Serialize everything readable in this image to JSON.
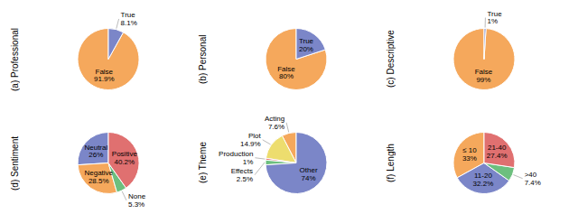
{
  "chart_data": [
    {
      "type": "pie",
      "title": "(a) Professional",
      "categories": [
        "False",
        "True"
      ],
      "values": [
        91.9,
        8.1
      ],
      "value_labels": [
        "91.9%",
        "8.1%"
      ],
      "colors": [
        "#F5A85C",
        "#7B86C8"
      ],
      "data_labels": true
    },
    {
      "type": "pie",
      "title": "(b) Personal",
      "categories": [
        "False",
        "True"
      ],
      "values": [
        80.0,
        20.0
      ],
      "value_labels": [
        "80%",
        "20%"
      ],
      "colors": [
        "#F5A85C",
        "#7B86C8"
      ],
      "data_labels": true
    },
    {
      "type": "pie",
      "title": "(c) Descriptive",
      "categories": [
        "False",
        "True"
      ],
      "values": [
        99.0,
        1.0
      ],
      "value_labels": [
        "99%",
        "1%"
      ],
      "colors": [
        "#F5A85C",
        "#7B86C8"
      ],
      "data_labels": true
    },
    {
      "type": "pie",
      "title": "(d) Sentiment",
      "categories": [
        "Neutral",
        "Negative",
        "None",
        "Positive"
      ],
      "values": [
        26.0,
        28.5,
        5.3,
        40.2
      ],
      "value_labels": [
        "26%",
        "28.5%",
        "5.3%",
        "40.2%"
      ],
      "colors": [
        "#7B86C8",
        "#F5A85C",
        "#6DBF7E",
        "#E07070"
      ],
      "data_labels": true
    },
    {
      "type": "pie",
      "title": "(e) Theme",
      "categories": [
        "Acting",
        "Plot",
        "Production",
        "Effects",
        "Other"
      ],
      "values": [
        7.6,
        14.9,
        1.0,
        2.5,
        74.0
      ],
      "value_labels": [
        "7.6%",
        "14.9%",
        "1%",
        "2.5%",
        "74%"
      ],
      "colors": [
        "#F5A85C",
        "#EDDD6E",
        "#E07070",
        "#6DBF7E",
        "#7B86C8"
      ],
      "data_labels": true
    },
    {
      "type": "pie",
      "title": "(f) Length",
      "categories": [
        "≤ 10",
        "11-20",
        ">40",
        "21-40"
      ],
      "values": [
        33.0,
        32.2,
        7.4,
        27.4
      ],
      "value_labels": [
        "33%",
        "32.2%",
        "7.4%",
        "27.4%"
      ],
      "colors": [
        "#F5A85C",
        "#7B86C8",
        "#6DBF7E",
        "#E07070"
      ],
      "data_labels": true
    }
  ]
}
